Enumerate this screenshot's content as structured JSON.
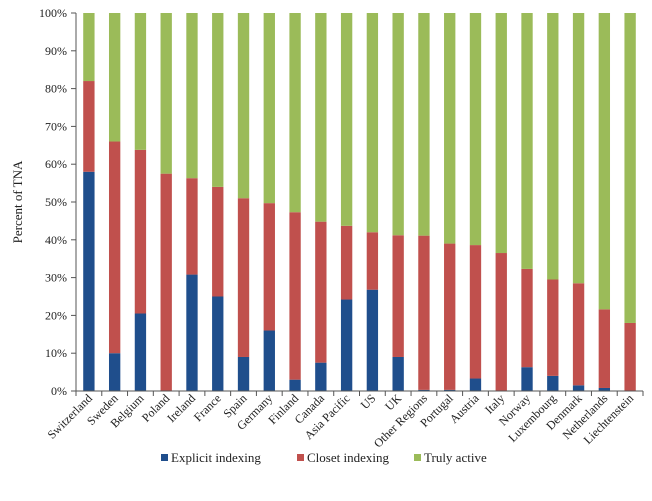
{
  "chart_data": {
    "type": "bar",
    "stacked": true,
    "normalized_percent": true,
    "title": "",
    "xlabel": "",
    "ylabel": "Percent of TNA",
    "ylim": [
      0,
      100
    ],
    "yticks": [
      "0%",
      "10%",
      "20%",
      "30%",
      "40%",
      "50%",
      "60%",
      "70%",
      "80%",
      "90%",
      "100%"
    ],
    "grid": false,
    "legend_position": "bottom",
    "categories": [
      "Switzerland",
      "Sweden",
      "Belgium",
      "Poland",
      "Ireland",
      "France",
      "Spain",
      "Germany",
      "Finland",
      "Canada",
      "Asia Pacific",
      "US",
      "UK",
      "Other Regions",
      "Portugal",
      "Austria",
      "Italy",
      "Norway",
      "Luxembourg",
      "Denmark",
      "Netherlands",
      "Liechtenstein"
    ],
    "series": [
      {
        "name": "Explicit indexing",
        "color": "#1f4e8c",
        "values": [
          58,
          10,
          20.5,
          0,
          30.8,
          25,
          9,
          16,
          3,
          7.5,
          24.2,
          26.8,
          9,
          0.3,
          0.3,
          3.3,
          0,
          6.3,
          4,
          1.5,
          0.8,
          0
        ]
      },
      {
        "name": "Closet indexing",
        "color": "#c0504d",
        "values": [
          24,
          56,
          43.3,
          57.5,
          25.5,
          29,
          42,
          33.7,
          44.3,
          37.3,
          19.5,
          15.2,
          32.2,
          40.8,
          38.7,
          35.3,
          36.5,
          26,
          25.5,
          27,
          20.8,
          18
        ]
      },
      {
        "name": "Truly active",
        "color": "#9bbb59",
        "values": [
          18,
          34,
          36.2,
          42.5,
          43.7,
          46,
          49,
          50.3,
          52.7,
          55.2,
          56.3,
          58,
          58.8,
          58.9,
          61,
          61.4,
          63.5,
          67.7,
          70.5,
          71.5,
          78.4,
          82
        ]
      }
    ]
  }
}
